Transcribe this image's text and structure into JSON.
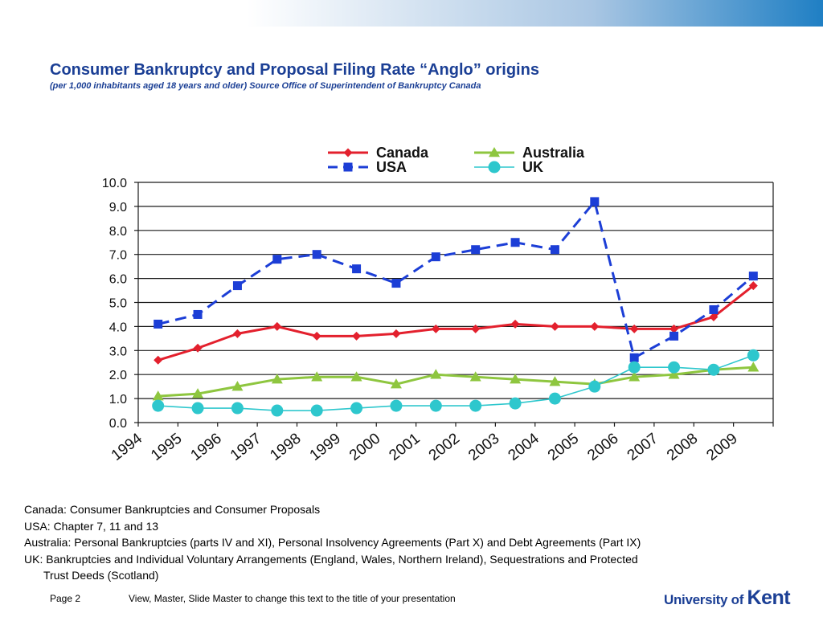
{
  "slide": {
    "title": "Consumer Bankruptcy and Proposal Filing Rate “Anglo” origins",
    "subtitle": "(per 1,000 inhabitants aged 18 years and older) Source Office of Superintendent of Bankruptcy Canada"
  },
  "notes": [
    "Canada: Consumer Bankruptcies and Consumer Proposals",
    "USA: Chapter 7, 11 and 13",
    "Australia: Personal Bankruptcies (parts IV and XI), Personal Insolvency Agreements (Part X) and Debt Agreements (Part IX)",
    "UK: Bankruptcies and Individual Voluntary Arrangements (England, Wales, Northern Ireland), Sequestrations and Protected",
    "Trust Deeds (Scotland)"
  ],
  "footer": {
    "page": "Page 2",
    "text": "View, Master, Slide Master to change this text to the title of your presentation"
  },
  "logo": {
    "university_text": "University of",
    "kent_text": "Kent"
  },
  "chart_data": {
    "type": "line",
    "x": [
      "1994",
      "1995",
      "1996",
      "1997",
      "1998",
      "1999",
      "2000",
      "2001",
      "2002",
      "2003",
      "2004",
      "2005",
      "2006",
      "2007",
      "2008",
      "2009"
    ],
    "ylim": [
      0,
      10
    ],
    "yticks": [
      "0.0",
      "1.0",
      "2.0",
      "3.0",
      "4.0",
      "5.0",
      "6.0",
      "7.0",
      "8.0",
      "9.0",
      "10.0"
    ],
    "grid": true,
    "legend_position": "top",
    "series": [
      {
        "name": "Canada",
        "color": "#e3202d",
        "marker": "diamond",
        "dash": "solid",
        "values": [
          2.6,
          3.1,
          3.7,
          4.0,
          3.6,
          3.6,
          3.7,
          3.9,
          3.9,
          4.1,
          4.0,
          4.0,
          3.9,
          3.9,
          4.4,
          5.7
        ]
      },
      {
        "name": "USA",
        "color": "#1c3ed6",
        "marker": "square",
        "dash": "dashed",
        "values": [
          4.1,
          4.5,
          5.7,
          6.8,
          7.0,
          6.4,
          5.8,
          6.9,
          7.2,
          7.5,
          7.2,
          9.2,
          2.7,
          3.6,
          4.7,
          6.1
        ]
      },
      {
        "name": "Australia",
        "color": "#8ec63f",
        "marker": "triangle",
        "dash": "solid",
        "values": [
          1.1,
          1.2,
          1.5,
          1.8,
          1.9,
          1.9,
          1.6,
          2.0,
          1.9,
          1.8,
          1.7,
          1.6,
          1.9,
          2.0,
          2.2,
          2.3
        ]
      },
      {
        "name": "UK",
        "color": "#2ec7cd",
        "marker": "circle",
        "dash": "solid",
        "values": [
          0.7,
          0.6,
          0.6,
          0.5,
          0.5,
          0.6,
          0.7,
          0.7,
          0.7,
          0.8,
          1.0,
          1.5,
          2.3,
          2.3,
          2.2,
          2.8
        ]
      }
    ]
  }
}
